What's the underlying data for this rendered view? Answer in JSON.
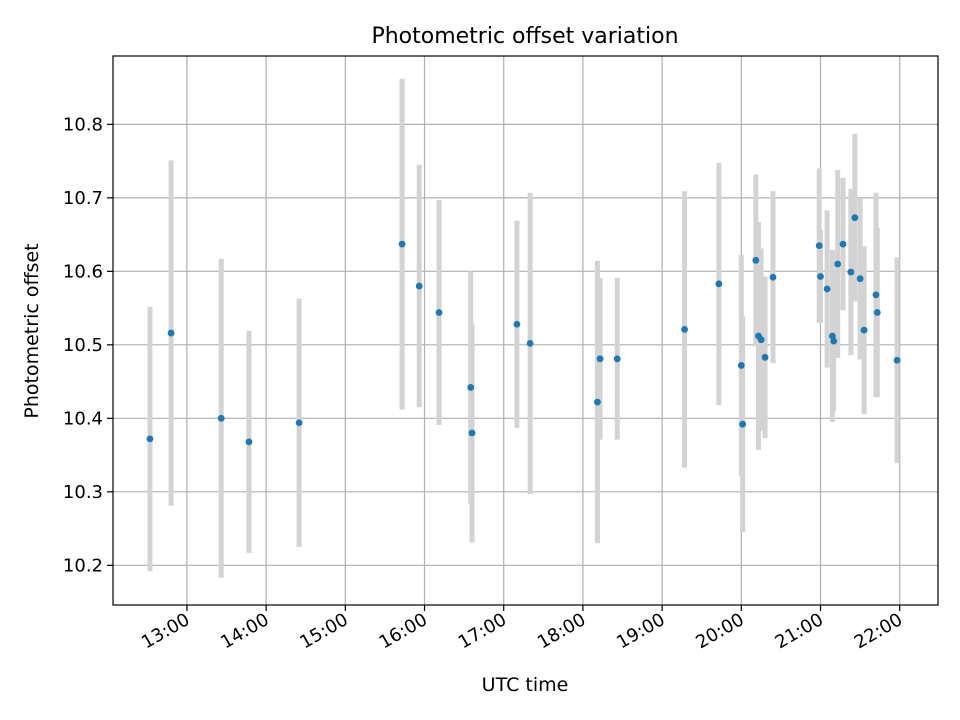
{
  "chart_data": {
    "type": "scatter",
    "title": "Photometric offset variation",
    "xlabel": "UTC time",
    "ylabel": "Photometric offset",
    "xlim": [
      "12:04",
      "22:29"
    ],
    "ylim": [
      10.146,
      10.893
    ],
    "grid": true,
    "yticks": [
      "10.2",
      "10.3",
      "10.4",
      "10.5",
      "10.6",
      "10.7",
      "10.8"
    ],
    "xticks": [
      "13:00",
      "14:00",
      "15:00",
      "16:00",
      "17:00",
      "18:00",
      "19:00",
      "20:00",
      "21:00",
      "22:00"
    ],
    "colors": {
      "marker": "#1f77b4",
      "errorbar": "#d3d3d3",
      "grid": "#b0b0b0"
    },
    "points": [
      {
        "x": "12:32",
        "y": 10.372,
        "err": 0.18
      },
      {
        "x": "12:48",
        "y": 10.516,
        "err": 0.235
      },
      {
        "x": "13:26",
        "y": 10.4,
        "err": 0.217
      },
      {
        "x": "13:47",
        "y": 10.368,
        "err": 0.151
      },
      {
        "x": "14:25",
        "y": 10.394,
        "err": 0.169
      },
      {
        "x": "15:43",
        "y": 10.637,
        "err": 0.225
      },
      {
        "x": "15:56",
        "y": 10.58,
        "err": 0.165
      },
      {
        "x": "16:11",
        "y": 10.544,
        "err": 0.153
      },
      {
        "x": "16:35",
        "y": 10.442,
        "err": 0.158
      },
      {
        "x": "16:36",
        "y": 10.38,
        "err": 0.149
      },
      {
        "x": "17:10",
        "y": 10.528,
        "err": 0.141
      },
      {
        "x": "17:20",
        "y": 10.502,
        "err": 0.205
      },
      {
        "x": "18:11",
        "y": 10.422,
        "err": 0.192
      },
      {
        "x": "18:13",
        "y": 10.481,
        "err": 0.11
      },
      {
        "x": "18:26",
        "y": 10.481,
        "err": 0.11
      },
      {
        "x": "19:17",
        "y": 10.521,
        "err": 0.188
      },
      {
        "x": "19:43",
        "y": 10.583,
        "err": 0.165
      },
      {
        "x": "20:00",
        "y": 10.472,
        "err": 0.15
      },
      {
        "x": "20:01",
        "y": 10.392,
        "err": 0.147
      },
      {
        "x": "20:11",
        "y": 10.615,
        "err": 0.117
      },
      {
        "x": "20:13",
        "y": 10.512,
        "err": 0.155
      },
      {
        "x": "20:15",
        "y": 10.507,
        "err": 0.124
      },
      {
        "x": "20:18",
        "y": 10.483,
        "err": 0.11
      },
      {
        "x": "20:24",
        "y": 10.592,
        "err": 0.117
      },
      {
        "x": "20:59",
        "y": 10.635,
        "err": 0.105
      },
      {
        "x": "21:00",
        "y": 10.593,
        "err": 0.063
      },
      {
        "x": "21:05",
        "y": 10.576,
        "err": 0.107
      },
      {
        "x": "21:09",
        "y": 10.512,
        "err": 0.117
      },
      {
        "x": "21:10",
        "y": 10.505,
        "err": 0.095
      },
      {
        "x": "21:13",
        "y": 10.61,
        "err": 0.128
      },
      {
        "x": "21:17",
        "y": 10.637,
        "err": 0.09
      },
      {
        "x": "21:23",
        "y": 10.599,
        "err": 0.113
      },
      {
        "x": "21:26",
        "y": 10.673,
        "err": 0.114
      },
      {
        "x": "21:30",
        "y": 10.59,
        "err": 0.11
      },
      {
        "x": "21:33",
        "y": 10.52,
        "err": 0.114
      },
      {
        "x": "21:42",
        "y": 10.568,
        "err": 0.139
      },
      {
        "x": "21:43",
        "y": 10.544,
        "err": 0.115
      },
      {
        "x": "21:58",
        "y": 10.479,
        "err": 0.14
      }
    ]
  }
}
